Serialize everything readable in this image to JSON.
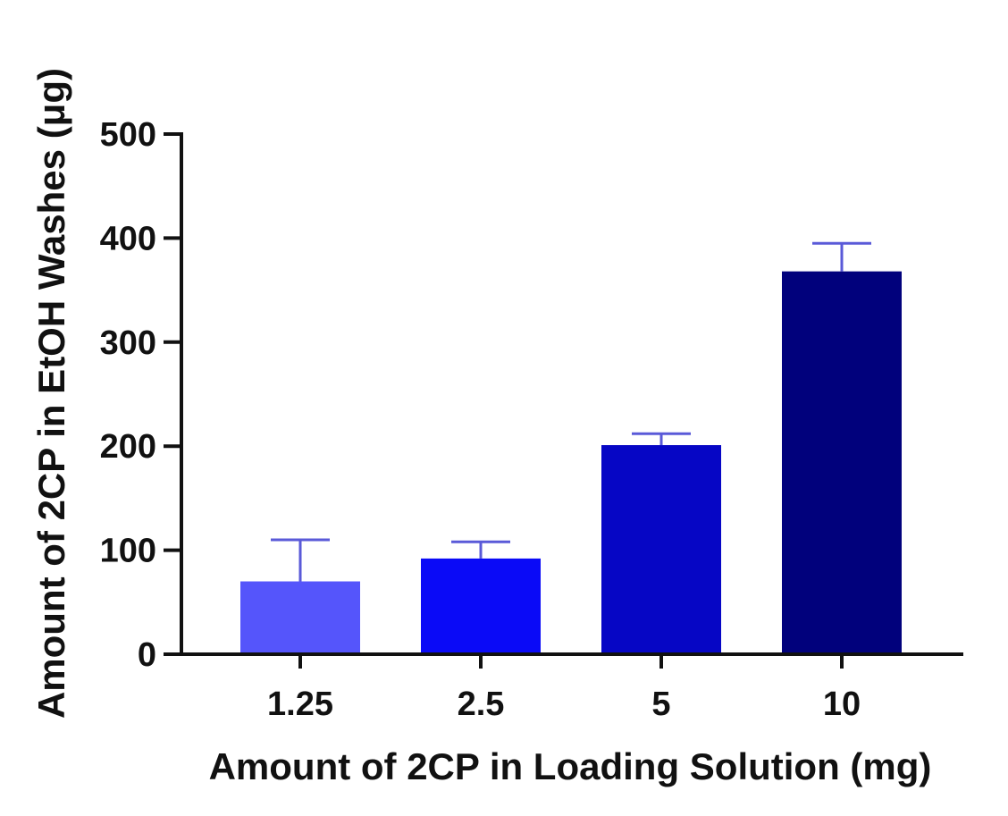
{
  "chart_data": {
    "type": "bar",
    "title": "",
    "xlabel": "Amount of 2CP in Loading Solution (mg)",
    "ylabel": "Amount of 2CP in EtOH Washes (μg)",
    "categories": [
      "1.25",
      "2.5",
      "5",
      "10"
    ],
    "values": [
      70,
      92,
      201,
      368
    ],
    "error_upper": [
      110,
      108,
      212,
      395
    ],
    "ylim": [
      0,
      500
    ],
    "yticks": [
      0,
      100,
      200,
      300,
      400,
      500
    ],
    "grid": false,
    "legend": "none",
    "bar_colors": [
      "#5555fb",
      "#0a0af7",
      "#0606c5",
      "#01017c"
    ],
    "error_bar_color": "#5a5ad8",
    "axis_color": "#111111"
  }
}
